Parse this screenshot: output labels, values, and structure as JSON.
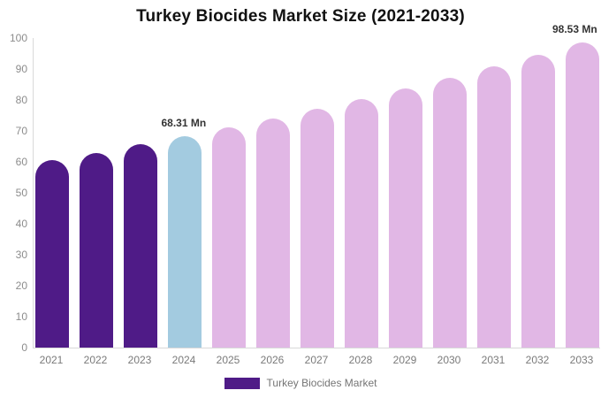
{
  "chart_data": {
    "type": "bar",
    "title": "Turkey Biocides Market Size (2021-2033)",
    "xlabel": "",
    "ylabel": "",
    "unit": "Mn",
    "categories": [
      "2021",
      "2022",
      "2023",
      "2024",
      "2025",
      "2026",
      "2027",
      "2028",
      "2029",
      "2030",
      "2031",
      "2032",
      "2033"
    ],
    "values": [
      60.5,
      63.0,
      65.6,
      68.31,
      71.2,
      74.1,
      77.2,
      80.4,
      83.7,
      87.2,
      90.8,
      94.6,
      98.53
    ],
    "bar_colors": [
      "#4F1B87",
      "#4F1B87",
      "#4F1B87",
      "#A3CBE0",
      "#E1B7E5",
      "#E1B7E5",
      "#E1B7E5",
      "#E1B7E5",
      "#E1B7E5",
      "#E1B7E5",
      "#E1B7E5",
      "#E1B7E5",
      "#E1B7E5"
    ],
    "ylim": [
      0,
      100
    ],
    "y_ticks": [
      0,
      10,
      20,
      30,
      40,
      50,
      60,
      70,
      80,
      90,
      100
    ],
    "grid": false,
    "annotations": [
      {
        "category": "2024",
        "text": "68.31 Mn"
      },
      {
        "category": "2033",
        "text": "98.53 Mn"
      }
    ],
    "legend": {
      "label": "Turkey Biocides Market",
      "swatch_color": "#4F1B87",
      "position": "bottom"
    },
    "colors": {
      "historical_bar": "#4F1B87",
      "highlight_bar": "#A3CBE0",
      "forecast_bar": "#E1B7E5",
      "title_text": "#111111",
      "axis_text": "#8c8c8c",
      "annotation_text": "#333333",
      "axis_line": "#d9d9d9",
      "background": "#ffffff"
    }
  }
}
